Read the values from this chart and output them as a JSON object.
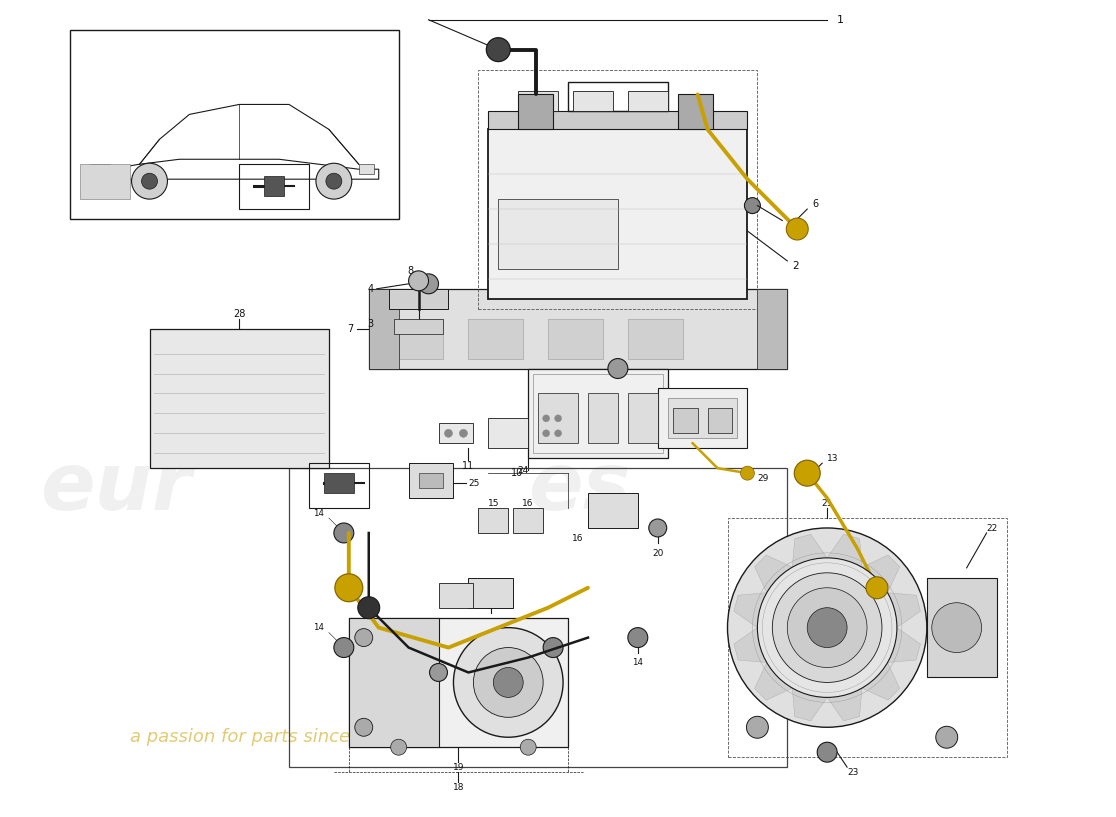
{
  "bg_color": "#ffffff",
  "line_color": "#1a1a1a",
  "label_color": "#111111",
  "yellow_cable": "#c8a000",
  "gray_fill": "#d0d0d0",
  "light_gray": "#e8e8e8",
  "watermark_color": "#cccccc",
  "watermark_alpha": 0.28,
  "wm_text1": "eur",
  "wm_text2": "es",
  "wm_sub": "a passion for parts since 1985",
  "wm_sub_color": "#c8a000"
}
